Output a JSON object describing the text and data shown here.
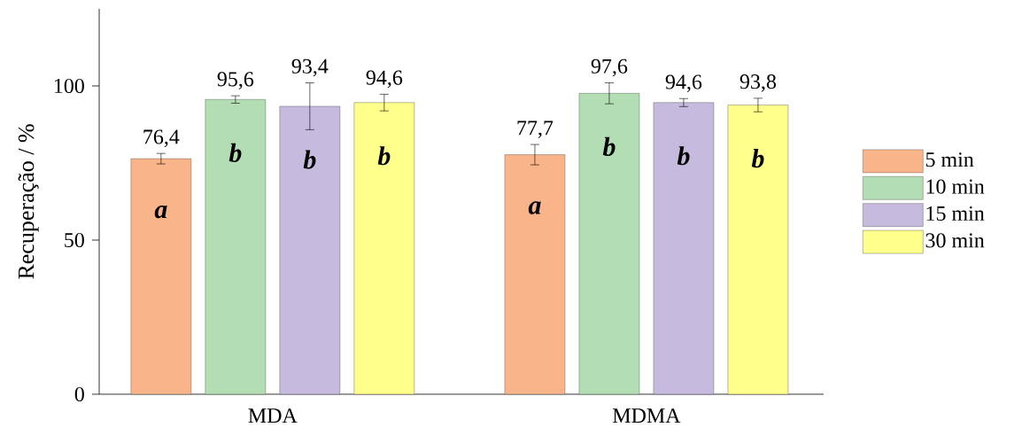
{
  "chart_data": {
    "type": "bar",
    "ylabel": "Recuperação / %",
    "categories": [
      "MDA",
      "MDMA"
    ],
    "series": [
      {
        "name": "5 min",
        "color": "#f9b48a",
        "values": [
          76.4,
          77.7
        ],
        "errors": [
          1.7,
          3.3
        ],
        "value_labels": [
          "76,4",
          "77,7"
        ]
      },
      {
        "name": "10 min",
        "color": "#b3deb3",
        "values": [
          95.6,
          97.6
        ],
        "errors": [
          1.2,
          3.4
        ],
        "value_labels": [
          "95,6",
          "97,6"
        ]
      },
      {
        "name": "15 min",
        "color": "#c6badf",
        "values": [
          93.4,
          94.6
        ],
        "errors": [
          7.6,
          1.3
        ],
        "value_labels": [
          "93,4",
          "94,6"
        ]
      },
      {
        "name": "30 min",
        "color": "#ffff8c",
        "values": [
          94.6,
          93.8
        ],
        "errors": [
          2.7,
          2.2
        ],
        "value_labels": [
          "94,6",
          "93,8"
        ]
      }
    ],
    "annotations": [
      "a",
      "b",
      "b",
      "b",
      "a",
      "b",
      "b",
      "b"
    ],
    "ylim": [
      0,
      125
    ],
    "yticks": [
      0,
      50,
      100
    ],
    "legend": "right"
  }
}
